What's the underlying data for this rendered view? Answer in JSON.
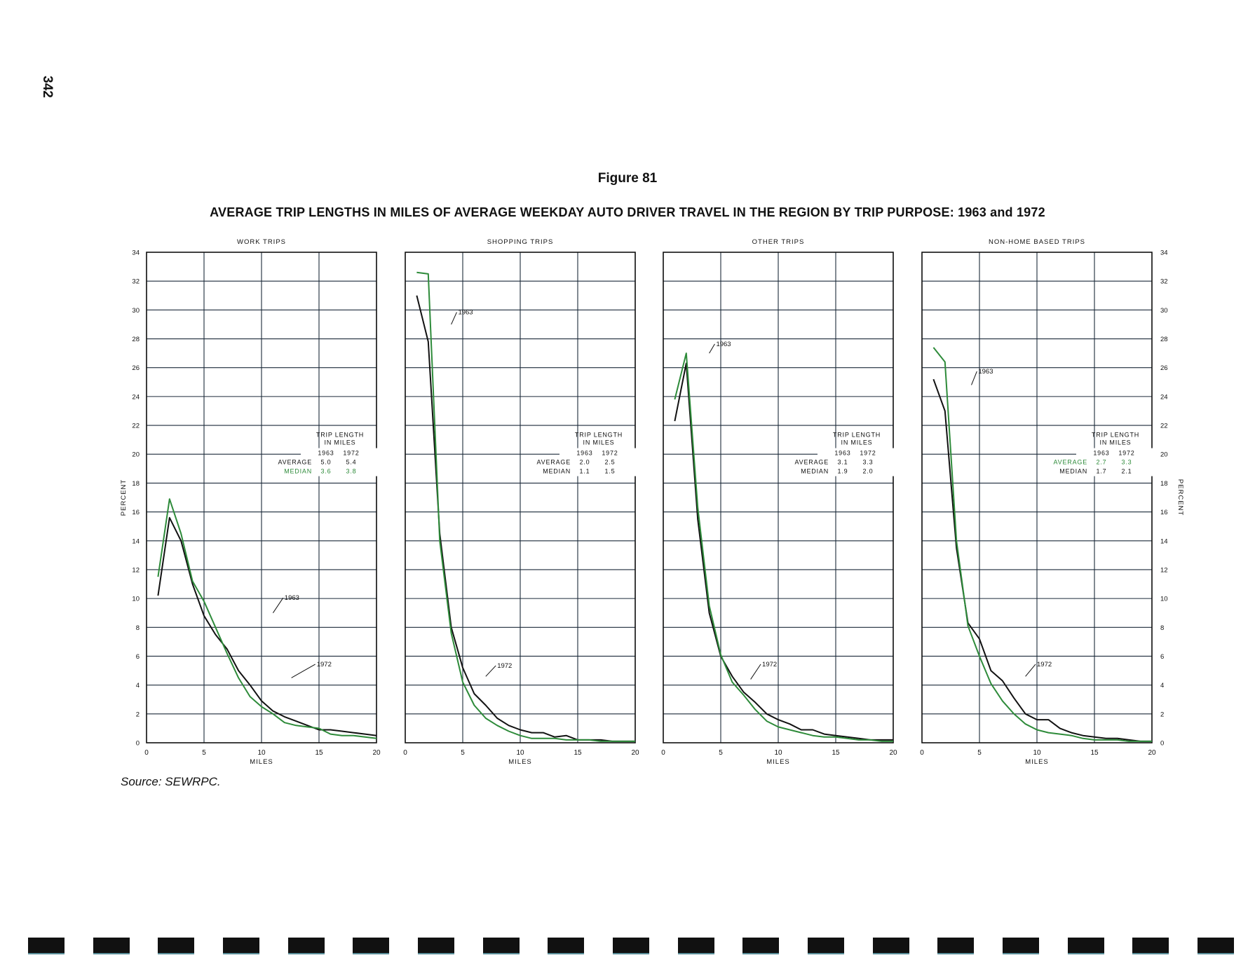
{
  "page": {
    "number": "342",
    "figure_label": "Figure 81",
    "title": "AVERAGE TRIP LENGTHS IN MILES OF AVERAGE WEEKDAY AUTO DRIVER TRAVEL IN THE REGION BY TRIP PURPOSE: 1963 and 1972",
    "source": "Source:  SEWRPC."
  },
  "colors": {
    "series_1963": "#111111",
    "series_1972": "#2e8b3a",
    "grid": "#1c2a3a"
  },
  "chart_data": [
    {
      "type": "line",
      "title": "WORK TRIPS",
      "xlabel": "MILES",
      "ylabel": "PERCENT",
      "xlim": [
        0,
        20
      ],
      "ylim": [
        0,
        34
      ],
      "grid": true,
      "x_ticks": [
        "0",
        "5",
        "10",
        "15",
        "20"
      ],
      "y_ticks": [
        "0",
        "2",
        "4",
        "6",
        "8",
        "10",
        "12",
        "14",
        "16",
        "18",
        "20",
        "22",
        "24",
        "26",
        "28",
        "30",
        "32",
        "34"
      ],
      "series": [
        {
          "name": "1963",
          "x": [
            1,
            2,
            3,
            4,
            5,
            6,
            7,
            8,
            9,
            10,
            11,
            12,
            13,
            14,
            15,
            16,
            17,
            18,
            19,
            20
          ],
          "y": [
            10.2,
            15.6,
            14.0,
            11.0,
            8.8,
            7.5,
            6.5,
            5.0,
            4.0,
            2.9,
            2.2,
            1.8,
            1.5,
            1.2,
            0.9,
            0.9,
            0.8,
            0.7,
            0.6,
            0.5
          ]
        },
        {
          "name": "1972",
          "x": [
            1,
            2,
            3,
            4,
            5,
            6,
            7,
            8,
            9,
            10,
            11,
            12,
            13,
            14,
            15,
            16,
            17,
            18,
            19,
            20
          ],
          "y": [
            11.5,
            16.9,
            14.5,
            11.2,
            9.8,
            8.0,
            6.2,
            4.5,
            3.2,
            2.5,
            2.0,
            1.4,
            1.2,
            1.1,
            1.0,
            0.6,
            0.5,
            0.5,
            0.4,
            0.3
          ]
        }
      ],
      "annotations": [
        {
          "text": "1963"
        },
        {
          "text": "1972"
        }
      ],
      "table": {
        "title_line1": "TRIP LENGTH",
        "title_line2": "IN MILES",
        "col1": "1963",
        "col2": "1972",
        "rows": [
          {
            "label": "AVERAGE",
            "v1": "5.0",
            "v2": "5.4"
          },
          {
            "label": "MEDIAN",
            "v1": "3.6",
            "v2": "3.8"
          }
        ]
      }
    },
    {
      "type": "line",
      "title": "SHOPPING TRIPS",
      "xlabel": "MILES",
      "ylabel": "",
      "xlim": [
        0,
        20
      ],
      "ylim": [
        0,
        34
      ],
      "grid": true,
      "x_ticks": [
        "0",
        "5",
        "10",
        "15",
        "20"
      ],
      "y_ticks": [],
      "series": [
        {
          "name": "1963",
          "x": [
            1,
            2,
            3,
            4,
            5,
            6,
            7,
            8,
            9,
            10,
            11,
            12,
            13,
            14,
            15,
            16,
            17,
            18,
            19,
            20
          ],
          "y": [
            31.0,
            27.8,
            14.5,
            8.0,
            5.2,
            3.4,
            2.6,
            1.7,
            1.2,
            0.9,
            0.7,
            0.7,
            0.4,
            0.5,
            0.2,
            0.2,
            0.2,
            0.1,
            0.1,
            0.1
          ]
        },
        {
          "name": "1972",
          "x": [
            1,
            2,
            3,
            4,
            5,
            6,
            7,
            8,
            9,
            10,
            11,
            12,
            13,
            14,
            15,
            16,
            17,
            18,
            19,
            20
          ],
          "y": [
            32.6,
            32.5,
            14.0,
            7.6,
            4.2,
            2.6,
            1.7,
            1.2,
            0.8,
            0.5,
            0.3,
            0.3,
            0.3,
            0.2,
            0.2,
            0.2,
            0.1,
            0.1,
            0.1,
            0.1
          ]
        }
      ],
      "annotations": [
        {
          "text": "1963"
        },
        {
          "text": "1972"
        }
      ],
      "table": {
        "title_line1": "TRIP LENGTH",
        "title_line2": "IN MILES",
        "col1": "1963",
        "col2": "1972",
        "rows": [
          {
            "label": "AVERAGE",
            "v1": "2.0",
            "v2": "2.5"
          },
          {
            "label": "MEDIAN",
            "v1": "1.1",
            "v2": "1.5"
          }
        ]
      }
    },
    {
      "type": "line",
      "title": "OTHER TRIPS",
      "xlabel": "MILES",
      "ylabel": "",
      "xlim": [
        0,
        20
      ],
      "ylim": [
        0,
        34
      ],
      "grid": true,
      "x_ticks": [
        "0",
        "5",
        "10",
        "15",
        "20"
      ],
      "y_ticks": [],
      "series": [
        {
          "name": "1963",
          "x": [
            1,
            2,
            3,
            4,
            5,
            6,
            7,
            8,
            9,
            10,
            11,
            12,
            13,
            14,
            15,
            16,
            17,
            18,
            19,
            20
          ],
          "y": [
            22.3,
            26.3,
            15.5,
            9.0,
            6.0,
            4.6,
            3.5,
            2.8,
            2.0,
            1.6,
            1.3,
            0.9,
            0.9,
            0.6,
            0.5,
            0.4,
            0.3,
            0.2,
            0.2,
            0.2
          ]
        },
        {
          "name": "1972",
          "x": [
            1,
            2,
            3,
            4,
            5,
            6,
            7,
            8,
            9,
            10,
            11,
            12,
            13,
            14,
            15,
            16,
            17,
            18,
            19,
            20
          ],
          "y": [
            23.8,
            27.0,
            16.3,
            9.5,
            6.1,
            4.2,
            3.3,
            2.3,
            1.5,
            1.1,
            0.9,
            0.7,
            0.5,
            0.4,
            0.4,
            0.3,
            0.2,
            0.2,
            0.1,
            0.1
          ]
        }
      ],
      "annotations": [
        {
          "text": "1963"
        },
        {
          "text": "1972"
        }
      ],
      "table": {
        "title_line1": "TRIP LENGTH",
        "title_line2": "IN MILES",
        "col1": "1963",
        "col2": "1972",
        "rows": [
          {
            "label": "AVERAGE",
            "v1": "3.1",
            "v2": "3.3"
          },
          {
            "label": "MEDIAN",
            "v1": "1.9",
            "v2": "2.0"
          }
        ]
      }
    },
    {
      "type": "line",
      "title": "NON-HOME BASED TRIPS",
      "xlabel": "MILES",
      "ylabel": "PERCENT",
      "xlim": [
        0,
        20
      ],
      "ylim": [
        0,
        34
      ],
      "grid": true,
      "x_ticks": [
        "0",
        "5",
        "10",
        "15",
        "20"
      ],
      "y_ticks": [
        "0",
        "2",
        "4",
        "6",
        "8",
        "10",
        "12",
        "14",
        "16",
        "18",
        "20",
        "22",
        "24",
        "26",
        "28",
        "30",
        "32",
        "34"
      ],
      "series": [
        {
          "name": "1963",
          "x": [
            1,
            2,
            3,
            4,
            5,
            6,
            7,
            8,
            9,
            10,
            11,
            12,
            13,
            14,
            15,
            16,
            17,
            18,
            19,
            20
          ],
          "y": [
            25.2,
            23.0,
            13.5,
            8.3,
            7.2,
            5.0,
            4.3,
            3.1,
            2.0,
            1.6,
            1.6,
            1.0,
            0.7,
            0.5,
            0.4,
            0.3,
            0.3,
            0.2,
            0.1,
            0.1
          ]
        },
        {
          "name": "1972",
          "x": [
            1,
            2,
            3,
            4,
            5,
            6,
            7,
            8,
            9,
            10,
            11,
            12,
            13,
            14,
            15,
            16,
            17,
            18,
            19,
            20
          ],
          "y": [
            27.4,
            26.4,
            14.0,
            8.1,
            6.0,
            4.1,
            2.9,
            2.0,
            1.3,
            0.9,
            0.7,
            0.6,
            0.5,
            0.3,
            0.2,
            0.2,
            0.2,
            0.1,
            0.1,
            0.1
          ]
        }
      ],
      "annotations": [
        {
          "text": "1963"
        },
        {
          "text": "1972"
        }
      ],
      "table": {
        "title_line1": "TRIP LENGTH",
        "title_line2": "IN MILES",
        "col1": "1963",
        "col2": "1972",
        "rows": [
          {
            "label": "AVERAGE",
            "v1": "2.7",
            "v2": "3.3"
          },
          {
            "label": "MEDIAN",
            "v1": "1.7",
            "v2": "2.1"
          }
        ]
      }
    }
  ]
}
